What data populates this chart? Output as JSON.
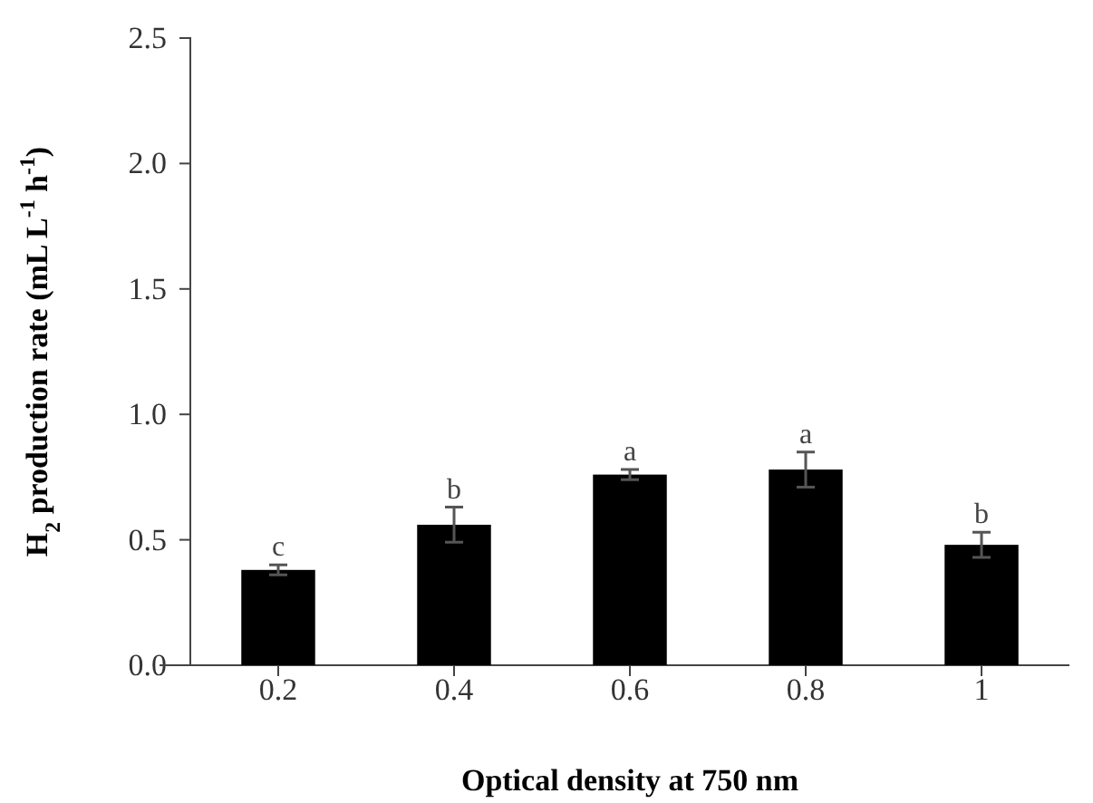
{
  "chart_data": {
    "type": "bar",
    "xlabel": "Optical density at 750 nm",
    "ylabel": "H$_{2}$ production rate  (mL L$^{-1}$ h$^{-1}$)",
    "categories": [
      "0.2",
      "0.4",
      "0.6",
      "0.8",
      "1"
    ],
    "values": [
      0.38,
      0.56,
      0.76,
      0.78,
      0.48
    ],
    "errors": [
      0.02,
      0.07,
      0.02,
      0.07,
      0.05
    ],
    "color": "#000000",
    "ylim": [
      0,
      2.5
    ],
    "yticks": [
      {
        "value": 0,
        "label": "0.0"
      },
      {
        "value": 0.5,
        "label": "0.5"
      },
      {
        "value": 1,
        "label": "1.0"
      },
      {
        "value": 1.5,
        "label": "1.5"
      },
      {
        "value": 2,
        "label": "2.0"
      },
      {
        "value": 2.5,
        "label": "2.5"
      }
    ],
    "grid": false,
    "annotations": [
      {
        "text": "c",
        "x": "0.2",
        "y": 0.4
      },
      {
        "text": "b",
        "x": "0.4",
        "y": 0.63
      },
      {
        "text": "a",
        "x": "0.6",
        "y": 0.78
      },
      {
        "text": "a",
        "x": "0.8",
        "y": 0.85
      },
      {
        "text": "b",
        "x": "1",
        "y": 0.53
      }
    ]
  }
}
